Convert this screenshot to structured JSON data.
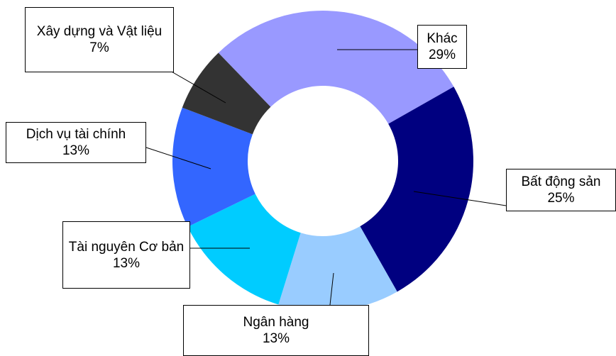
{
  "chart_data": {
    "type": "donut",
    "categories": [
      "Khác",
      "Bất động sản",
      "Ngân hàng",
      "Tài nguyên Cơ bản",
      "Dịch vụ tài chính",
      "Xây dựng và Vật liệu"
    ],
    "values": [
      29,
      25,
      13,
      13,
      13,
      7
    ],
    "value_labels": [
      "29%",
      "25%",
      "13%",
      "13%",
      "13%",
      "7%"
    ],
    "colors": [
      "#9999ff",
      "#000080",
      "#99ccff",
      "#00ccff",
      "#3366ff",
      "#333333"
    ]
  }
}
